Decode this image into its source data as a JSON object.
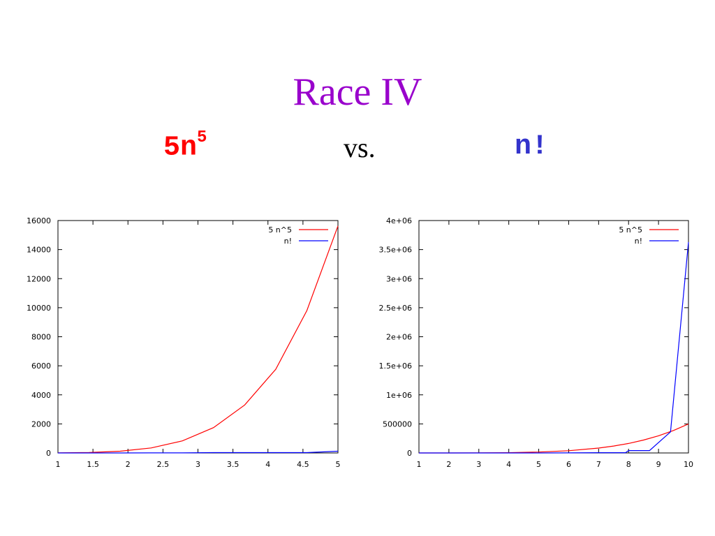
{
  "slide": {
    "title": "Race IV",
    "left_expr_base": "5n",
    "left_expr_exp": "5",
    "vs": "vs.",
    "right_expr": "n!"
  },
  "colors": {
    "title": "#9900cc",
    "red": "#ff0000",
    "blue": "#3333cc",
    "series_blue": "#0000ff"
  },
  "chart_data": [
    {
      "type": "line",
      "xlim": [
        1,
        5
      ],
      "ylim": [
        0,
        16000
      ],
      "xticks": [
        "1",
        "1.5",
        "2",
        "2.5",
        "3",
        "3.5",
        "4",
        "4.5",
        "5"
      ],
      "yticks": [
        "0",
        "2000",
        "4000",
        "6000",
        "8000",
        "10000",
        "12000",
        "14000",
        "16000"
      ],
      "legend_position": "top-right",
      "series": [
        {
          "name": "5 n^5",
          "color": "#ff0000",
          "x": [
            1,
            1.444,
            1.889,
            2.333,
            2.778,
            3.222,
            3.667,
            4.111,
            4.556,
            5
          ],
          "y": [
            5,
            31,
            121,
            345,
            832,
            1746,
            3303,
            5760,
            9800,
            15625
          ]
        },
        {
          "name": "n!",
          "color": "#0000ff",
          "x": [
            1,
            1.444,
            1.889,
            2.333,
            2.778,
            3.222,
            3.667,
            4.111,
            4.556,
            5
          ],
          "y": [
            1,
            1,
            2,
            6,
            6,
            24,
            24,
            24,
            24,
            120
          ]
        }
      ]
    },
    {
      "type": "line",
      "xlim": [
        1,
        10
      ],
      "ylim": [
        0,
        4000000
      ],
      "xticks": [
        "1",
        "2",
        "3",
        "4",
        "5",
        "6",
        "7",
        "8",
        "9",
        "10"
      ],
      "yticks": [
        "0",
        "500000",
        "1e+06",
        "1.5e+06",
        "2e+06",
        "2.5e+06",
        "3e+06",
        "3.5e+06",
        "4e+06"
      ],
      "legend_position": "top-right",
      "series": [
        {
          "name": "5 n^5",
          "color": "#ff0000",
          "x": [
            1,
            2,
            3,
            4,
            5,
            6,
            7,
            7.5,
            8,
            8.5,
            9,
            9.5,
            10
          ],
          "y": [
            5,
            160,
            1215,
            5120,
            15625,
            38880,
            84035,
            118652,
            163840,
            221853,
            295245,
            386890,
            500000
          ]
        },
        {
          "name": "n!",
          "color": "#0000ff",
          "x": [
            1,
            2,
            3,
            4,
            5,
            6,
            7,
            7.9,
            8,
            8.7,
            9.4,
            10
          ],
          "y": [
            1,
            2,
            6,
            24,
            120,
            720,
            5040,
            5040,
            40320,
            40320,
            362880,
            3628800
          ]
        }
      ]
    }
  ]
}
